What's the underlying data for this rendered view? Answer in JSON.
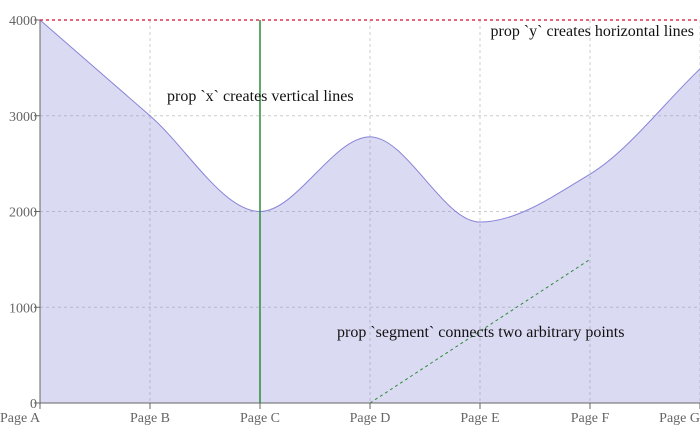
{
  "chart_data": {
    "type": "area",
    "categories": [
      "Page A",
      "Page B",
      "Page C",
      "Page D",
      "Page E",
      "Page F",
      "Page G"
    ],
    "series": [
      {
        "values": [
          4000,
          3000,
          2000,
          2780,
          1890,
          2390,
          3490
        ],
        "color": "#8884d8"
      }
    ],
    "ylim": [
      0,
      4000
    ],
    "yticks": [
      "0",
      "1000",
      "2000",
      "3000",
      "4000"
    ],
    "grid": true,
    "reference_lines": {
      "x": {
        "at": "Page C",
        "color": "#2e8b3a",
        "label": "prop `x` creates vertical lines"
      },
      "y": {
        "at": 4000,
        "color": "#e0304e",
        "label": "prop `y` creates horizontal lines"
      },
      "segment": {
        "from": [
          "Page D",
          0
        ],
        "to": [
          "Page F",
          1500
        ],
        "color": "#2e8b3a",
        "label": "prop `segment` connects two arbitrary points"
      }
    }
  }
}
